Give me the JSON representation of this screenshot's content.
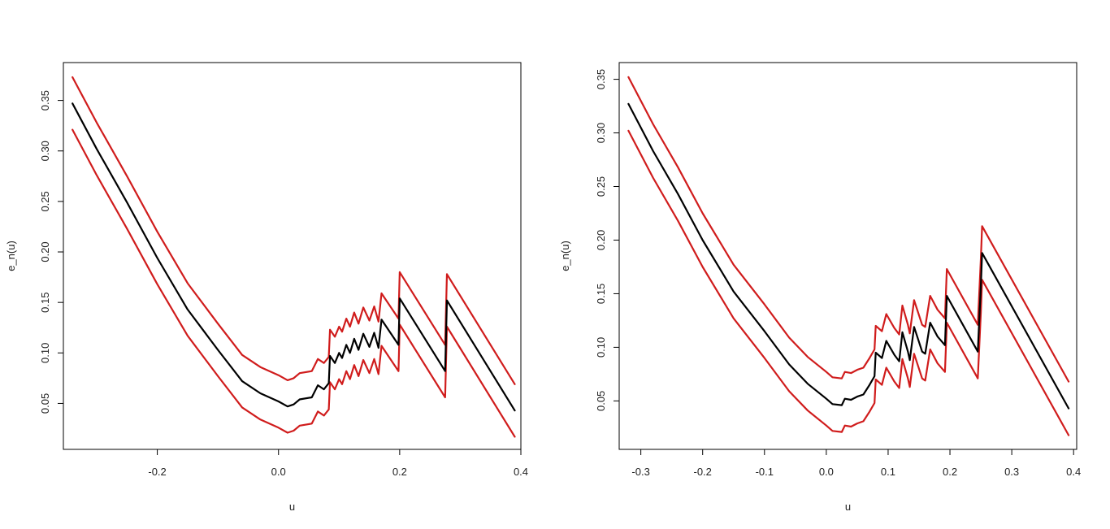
{
  "chart_data": [
    {
      "type": "line",
      "xlabel": "u",
      "ylabel": "e_n(u)",
      "xlim": [
        -0.355,
        0.4
      ],
      "ylim": [
        0.0045,
        0.3875
      ],
      "xticks": [
        -0.2,
        0.0,
        0.2,
        0.4
      ],
      "xtick_labels": [
        "-0.2",
        "0.0",
        "0.2",
        "0.4"
      ],
      "yticks": [
        0.05,
        0.1,
        0.15,
        0.2,
        0.25,
        0.3,
        0.35
      ],
      "ytick_labels": [
        "0.05",
        "0.10",
        "0.15",
        "0.20",
        "0.25",
        "0.30",
        "0.35"
      ],
      "grid": false,
      "colors": {
        "estimate": "#000000",
        "bands": "#d01c1c"
      },
      "band_offset": 0.026,
      "series": [
        {
          "role": "estimate",
          "points": [
            [
              -0.34,
              0.347
            ],
            [
              -0.3,
              0.302
            ],
            [
              -0.25,
              0.249
            ],
            [
              -0.2,
              0.194
            ],
            [
              -0.15,
              0.143
            ],
            [
              -0.1,
              0.103
            ],
            [
              -0.06,
              0.072
            ],
            [
              -0.03,
              0.06
            ],
            [
              0.0,
              0.052
            ],
            [
              0.015,
              0.047
            ],
            [
              0.025,
              0.049
            ],
            [
              0.035,
              0.054
            ],
            [
              0.055,
              0.056
            ],
            [
              0.065,
              0.068
            ],
            [
              0.075,
              0.064
            ],
            [
              0.083,
              0.07
            ],
            [
              0.085,
              0.097
            ],
            [
              0.093,
              0.09
            ],
            [
              0.1,
              0.1
            ],
            [
              0.105,
              0.095
            ],
            [
              0.112,
              0.108
            ],
            [
              0.118,
              0.1
            ],
            [
              0.125,
              0.114
            ],
            [
              0.132,
              0.103
            ],
            [
              0.14,
              0.119
            ],
            [
              0.15,
              0.106
            ],
            [
              0.158,
              0.12
            ],
            [
              0.165,
              0.105
            ],
            [
              0.17,
              0.133
            ],
            [
              0.198,
              0.108
            ],
            [
              0.2,
              0.154
            ],
            [
              0.275,
              0.082
            ],
            [
              0.278,
              0.152
            ],
            [
              0.39,
              0.043
            ]
          ]
        },
        {
          "role": "upper",
          "points": [
            [
              -0.34,
              0.373
            ],
            [
              -0.3,
              0.328
            ],
            [
              -0.25,
              0.275
            ],
            [
              -0.2,
              0.22
            ],
            [
              -0.15,
              0.169
            ],
            [
              -0.1,
              0.129
            ],
            [
              -0.06,
              0.098
            ],
            [
              -0.03,
              0.086
            ],
            [
              0.0,
              0.078
            ],
            [
              0.015,
              0.073
            ],
            [
              0.025,
              0.075
            ],
            [
              0.035,
              0.08
            ],
            [
              0.055,
              0.082
            ],
            [
              0.065,
              0.094
            ],
            [
              0.075,
              0.09
            ],
            [
              0.083,
              0.096
            ],
            [
              0.085,
              0.123
            ],
            [
              0.093,
              0.116
            ],
            [
              0.1,
              0.126
            ],
            [
              0.105,
              0.121
            ],
            [
              0.112,
              0.134
            ],
            [
              0.118,
              0.126
            ],
            [
              0.125,
              0.14
            ],
            [
              0.132,
              0.129
            ],
            [
              0.14,
              0.145
            ],
            [
              0.15,
              0.132
            ],
            [
              0.158,
              0.146
            ],
            [
              0.165,
              0.131
            ],
            [
              0.17,
              0.159
            ],
            [
              0.198,
              0.134
            ],
            [
              0.2,
              0.18
            ],
            [
              0.275,
              0.108
            ],
            [
              0.278,
              0.178
            ],
            [
              0.39,
              0.069
            ]
          ]
        },
        {
          "role": "lower",
          "points": [
            [
              -0.34,
              0.321
            ],
            [
              -0.3,
              0.276
            ],
            [
              -0.25,
              0.223
            ],
            [
              -0.2,
              0.168
            ],
            [
              -0.15,
              0.117
            ],
            [
              -0.1,
              0.077
            ],
            [
              -0.06,
              0.046
            ],
            [
              -0.03,
              0.034
            ],
            [
              0.0,
              0.026
            ],
            [
              0.015,
              0.021
            ],
            [
              0.025,
              0.023
            ],
            [
              0.035,
              0.028
            ],
            [
              0.055,
              0.03
            ],
            [
              0.065,
              0.042
            ],
            [
              0.075,
              0.038
            ],
            [
              0.083,
              0.044
            ],
            [
              0.085,
              0.071
            ],
            [
              0.093,
              0.064
            ],
            [
              0.1,
              0.074
            ],
            [
              0.105,
              0.069
            ],
            [
              0.112,
              0.082
            ],
            [
              0.118,
              0.074
            ],
            [
              0.125,
              0.088
            ],
            [
              0.132,
              0.077
            ],
            [
              0.14,
              0.093
            ],
            [
              0.15,
              0.08
            ],
            [
              0.158,
              0.094
            ],
            [
              0.165,
              0.079
            ],
            [
              0.17,
              0.107
            ],
            [
              0.198,
              0.082
            ],
            [
              0.2,
              0.128
            ],
            [
              0.275,
              0.056
            ],
            [
              0.278,
              0.126
            ],
            [
              0.39,
              0.017
            ]
          ]
        }
      ]
    },
    {
      "type": "line",
      "xlabel": "u",
      "ylabel": "e_n(u)",
      "xlim": [
        -0.335,
        0.405
      ],
      "ylim": [
        0.0048,
        0.3656
      ],
      "xticks": [
        -0.3,
        -0.2,
        -0.1,
        0.0,
        0.1,
        0.2,
        0.3,
        0.4
      ],
      "xtick_labels": [
        "-0.3",
        "-0.2",
        "-0.1",
        "0.0",
        "0.1",
        "0.2",
        "0.3",
        "0.4"
      ],
      "yticks": [
        0.05,
        0.1,
        0.15,
        0.2,
        0.25,
        0.3,
        0.35
      ],
      "ytick_labels": [
        "0.05",
        "0.10",
        "0.15",
        "0.20",
        "0.25",
        "0.30",
        "0.35"
      ],
      "grid": false,
      "colors": {
        "estimate": "#000000",
        "bands": "#d01c1c"
      },
      "band_offset": 0.025,
      "series": [
        {
          "role": "estimate",
          "points": [
            [
              -0.32,
              0.327
            ],
            [
              -0.28,
              0.283
            ],
            [
              -0.24,
              0.243
            ],
            [
              -0.2,
              0.2
            ],
            [
              -0.15,
              0.152
            ],
            [
              -0.1,
              0.115
            ],
            [
              -0.06,
              0.084
            ],
            [
              -0.03,
              0.066
            ],
            [
              0.0,
              0.052
            ],
            [
              0.01,
              0.047
            ],
            [
              0.025,
              0.046
            ],
            [
              0.03,
              0.052
            ],
            [
              0.04,
              0.051
            ],
            [
              0.05,
              0.054
            ],
            [
              0.06,
              0.056
            ],
            [
              0.07,
              0.065
            ],
            [
              0.078,
              0.073
            ],
            [
              0.08,
              0.095
            ],
            [
              0.09,
              0.09
            ],
            [
              0.097,
              0.106
            ],
            [
              0.11,
              0.093
            ],
            [
              0.118,
              0.087
            ],
            [
              0.123,
              0.114
            ],
            [
              0.132,
              0.096
            ],
            [
              0.135,
              0.088
            ],
            [
              0.142,
              0.119
            ],
            [
              0.155,
              0.096
            ],
            [
              0.16,
              0.094
            ],
            [
              0.168,
              0.123
            ],
            [
              0.18,
              0.11
            ],
            [
              0.192,
              0.102
            ],
            [
              0.195,
              0.148
            ],
            [
              0.245,
              0.096
            ],
            [
              0.25,
              0.158
            ],
            [
              0.252,
              0.188
            ],
            [
              0.392,
              0.043
            ]
          ]
        },
        {
          "role": "upper",
          "points": [
            [
              -0.32,
              0.352
            ],
            [
              -0.28,
              0.308
            ],
            [
              -0.24,
              0.268
            ],
            [
              -0.2,
              0.225
            ],
            [
              -0.15,
              0.177
            ],
            [
              -0.1,
              0.14
            ],
            [
              -0.06,
              0.109
            ],
            [
              -0.03,
              0.091
            ],
            [
              0.0,
              0.077
            ],
            [
              0.01,
              0.072
            ],
            [
              0.025,
              0.071
            ],
            [
              0.03,
              0.077
            ],
            [
              0.04,
              0.076
            ],
            [
              0.05,
              0.079
            ],
            [
              0.06,
              0.081
            ],
            [
              0.07,
              0.09
            ],
            [
              0.078,
              0.098
            ],
            [
              0.08,
              0.12
            ],
            [
              0.09,
              0.115
            ],
            [
              0.097,
              0.131
            ],
            [
              0.11,
              0.118
            ],
            [
              0.118,
              0.112
            ],
            [
              0.123,
              0.139
            ],
            [
              0.132,
              0.121
            ],
            [
              0.135,
              0.113
            ],
            [
              0.142,
              0.144
            ],
            [
              0.155,
              0.121
            ],
            [
              0.16,
              0.119
            ],
            [
              0.168,
              0.148
            ],
            [
              0.18,
              0.135
            ],
            [
              0.192,
              0.127
            ],
            [
              0.195,
              0.173
            ],
            [
              0.245,
              0.121
            ],
            [
              0.25,
              0.183
            ],
            [
              0.252,
              0.213
            ],
            [
              0.392,
              0.068
            ]
          ]
        },
        {
          "role": "lower",
          "points": [
            [
              -0.32,
              0.302
            ],
            [
              -0.28,
              0.258
            ],
            [
              -0.24,
              0.218
            ],
            [
              -0.2,
              0.175
            ],
            [
              -0.15,
              0.127
            ],
            [
              -0.1,
              0.09
            ],
            [
              -0.06,
              0.059
            ],
            [
              -0.03,
              0.041
            ],
            [
              0.0,
              0.027
            ],
            [
              0.01,
              0.022
            ],
            [
              0.025,
              0.021
            ],
            [
              0.03,
              0.027
            ],
            [
              0.04,
              0.026
            ],
            [
              0.05,
              0.029
            ],
            [
              0.06,
              0.031
            ],
            [
              0.07,
              0.04
            ],
            [
              0.078,
              0.048
            ],
            [
              0.08,
              0.07
            ],
            [
              0.09,
              0.065
            ],
            [
              0.097,
              0.081
            ],
            [
              0.11,
              0.068
            ],
            [
              0.118,
              0.062
            ],
            [
              0.123,
              0.089
            ],
            [
              0.132,
              0.071
            ],
            [
              0.135,
              0.063
            ],
            [
              0.142,
              0.094
            ],
            [
              0.155,
              0.071
            ],
            [
              0.16,
              0.069
            ],
            [
              0.168,
              0.098
            ],
            [
              0.18,
              0.085
            ],
            [
              0.192,
              0.077
            ],
            [
              0.195,
              0.123
            ],
            [
              0.245,
              0.071
            ],
            [
              0.25,
              0.133
            ],
            [
              0.252,
              0.163
            ],
            [
              0.392,
              0.018
            ]
          ]
        }
      ]
    }
  ]
}
